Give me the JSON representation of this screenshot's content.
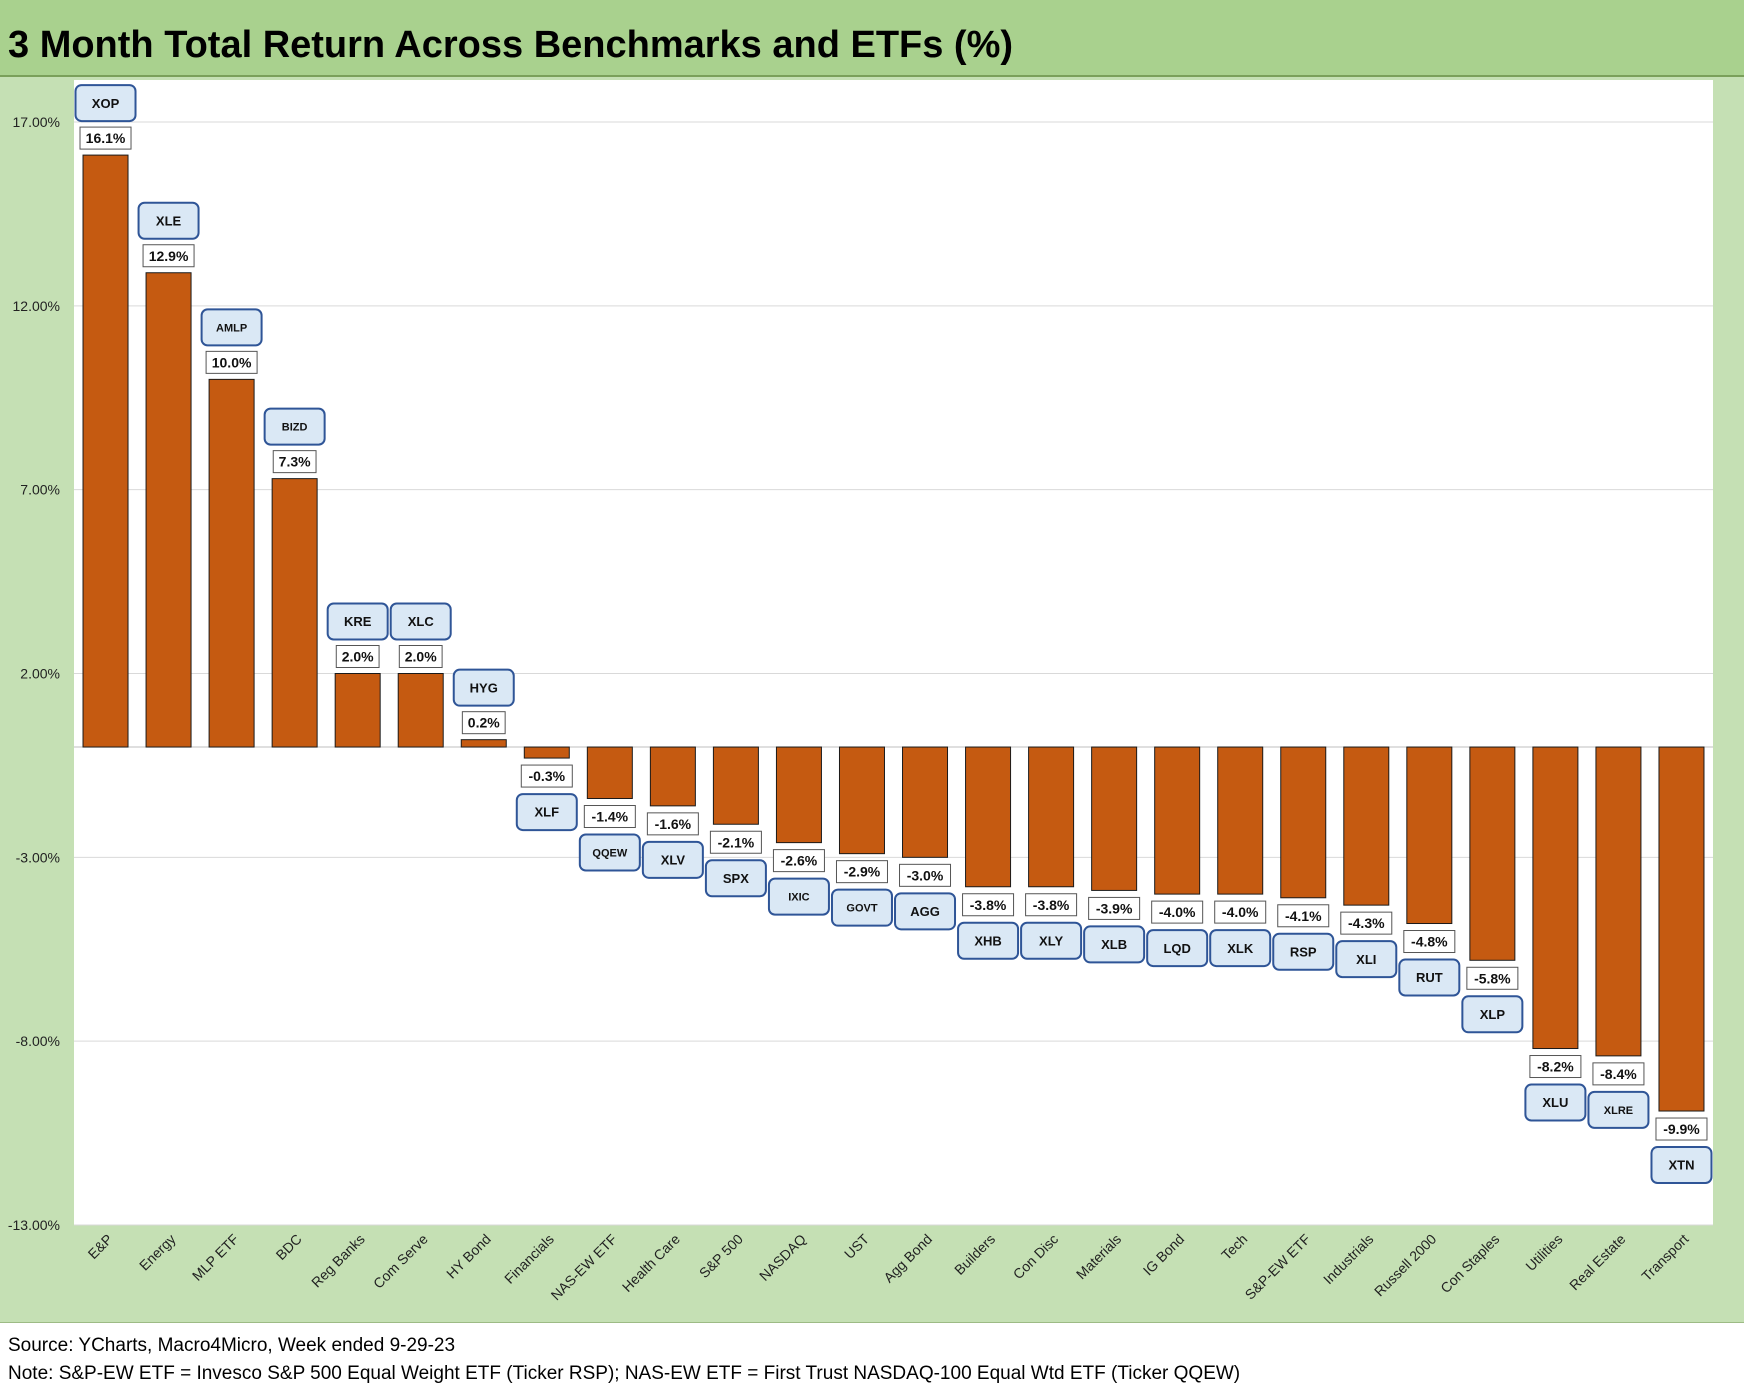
{
  "title": "3 Month Total Return Across Benchmarks and ETFs (%)",
  "source": "Source: YCharts, Macro4Micro, Week ended 9-29-23",
  "note": "Note: S&P-EW ETF = Invesco S&P 500 Equal Weight ETF (Ticker RSP); NAS-EW ETF = First Trust NASDAQ-100 Equal Wtd ETF (Ticker QQEW)",
  "colors": {
    "bar": "#c55a11",
    "header": "#a9d18e",
    "plot_bg": "#c5e0b4",
    "label_box": "#dae8f5",
    "label_border": "#2f5597"
  },
  "chart_data": {
    "type": "bar",
    "title": "3 Month Total Return Across Benchmarks and ETFs (%)",
    "xlabel": "",
    "ylabel": "",
    "ylim": [
      -13,
      17
    ],
    "yticks": [
      17,
      12,
      7,
      2,
      -3,
      -8,
      -13
    ],
    "ytick_labels": [
      "17.00%",
      "12.00%",
      "7.00%",
      "2.00%",
      "-3.00%",
      "-8.00%",
      "-13.00%"
    ],
    "grid": true,
    "legend": "none",
    "categories": [
      "E&P",
      "Energy",
      "MLP ETF",
      "BDC",
      "Reg Banks",
      "Com Serve",
      "HY Bond",
      "Financials",
      "NAS-EW ETF",
      "Health Care",
      "S&P 500",
      "NASDAQ",
      "UST",
      "Agg Bond",
      "Builders",
      "Con Disc",
      "Materials",
      "IG Bond",
      "Tech",
      "S&P-EW ETF",
      "Industrials",
      "Russell 2000",
      "Con Staples",
      "Utilities",
      "Real Estate",
      "Transport"
    ],
    "tickers": [
      "XOP",
      "XLE",
      "AMLP",
      "BIZD",
      "KRE",
      "XLC",
      "HYG",
      "XLF",
      "QQEW",
      "XLV",
      "SPX",
      "IXIC",
      "GOVT",
      "AGG",
      "XHB",
      "XLY",
      "XLB",
      "LQD",
      "XLK",
      "RSP",
      "XLI",
      "RUT",
      "XLP",
      "XLU",
      "XLRE",
      "XTN"
    ],
    "values": [
      16.1,
      12.9,
      10.0,
      7.3,
      2.0,
      2.0,
      0.2,
      -0.3,
      -1.4,
      -1.6,
      -2.1,
      -2.6,
      -2.9,
      -3.0,
      -3.8,
      -3.8,
      -3.9,
      -4.0,
      -4.0,
      -4.1,
      -4.3,
      -4.8,
      -5.8,
      -8.2,
      -8.4,
      -9.9
    ],
    "value_labels": [
      "16.1%",
      "12.9%",
      "10.0%",
      "7.3%",
      "2.0%",
      "2.0%",
      "0.2%",
      "-0.3%",
      "-1.4%",
      "-1.6%",
      "-2.1%",
      "-2.6%",
      "-2.9%",
      "-3.0%",
      "-3.8%",
      "-3.8%",
      "-3.9%",
      "-4.0%",
      "-4.0%",
      "-4.1%",
      "-4.3%",
      "-4.8%",
      "-5.8%",
      "-8.2%",
      "-8.4%",
      "-9.9%"
    ]
  }
}
